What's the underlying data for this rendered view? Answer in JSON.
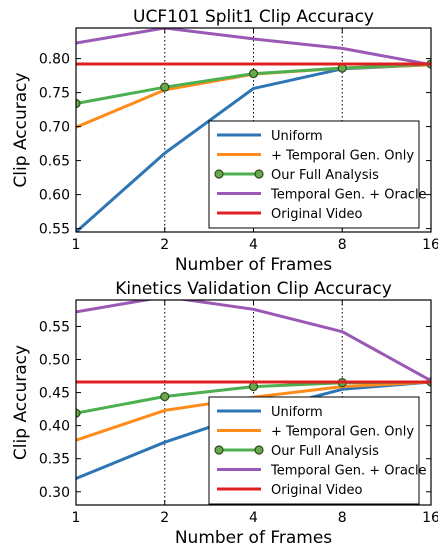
{
  "chart_data": [
    {
      "type": "line",
      "title": "UCF101 Split1 Clip Accuracy",
      "xlabel": "Number of Frames",
      "ylabel": "Clip Accuracy",
      "x": [
        1,
        2,
        4,
        8,
        16
      ],
      "x_scale": "log2",
      "ylim": [
        0.545,
        0.845
      ],
      "yticks": [
        "0.55",
        "0.60",
        "0.65",
        "0.70",
        "0.75",
        "0.80"
      ],
      "grid": "vertical dotted",
      "legend_position": "lower-right",
      "series": [
        {
          "name": "Uniform",
          "color": "#2e75b6",
          "marker": "none",
          "values": [
            0.545,
            0.661,
            0.756,
            0.785,
            0.791
          ]
        },
        {
          "name": "+ Temporal Gen. Only",
          "color": "#ff8c1a",
          "marker": "none",
          "values": [
            0.699,
            0.754,
            0.777,
            0.786,
            0.791
          ]
        },
        {
          "name": "Our Full Analysis",
          "color": "#4caf50",
          "marker": "circle",
          "values": [
            0.734,
            0.758,
            0.778,
            0.786,
            0.792
          ]
        },
        {
          "name": "Temporal Gen. + Oracle",
          "color": "#9b59b6",
          "marker": "none",
          "values": [
            0.823,
            0.845,
            0.829,
            0.815,
            0.791
          ]
        },
        {
          "name": "Original Video",
          "color": "#e02020",
          "marker": "none",
          "values": [
            0.792,
            0.792,
            0.792,
            0.792,
            0.792
          ]
        }
      ]
    },
    {
      "type": "line",
      "title": "Kinetics Validation Clip Accuracy",
      "xlabel": "Number of Frames",
      "ylabel": "Clip Accuracy",
      "x": [
        1,
        2,
        4,
        8,
        16
      ],
      "x_scale": "log2",
      "ylim": [
        0.28,
        0.59
      ],
      "yticks": [
        "0.30",
        "0.35",
        "0.40",
        "0.45",
        "0.50",
        "0.55"
      ],
      "grid": "vertical dotted",
      "legend_position": "lower-right",
      "series": [
        {
          "name": "Uniform",
          "color": "#2e75b6",
          "marker": "none",
          "values": [
            0.32,
            0.375,
            0.42,
            0.455,
            0.466
          ]
        },
        {
          "name": "+ Temporal Gen. Only",
          "color": "#ff8c1a",
          "marker": "none",
          "values": [
            0.378,
            0.423,
            0.443,
            0.459,
            0.466
          ]
        },
        {
          "name": "Our Full Analysis",
          "color": "#4caf50",
          "marker": "circle",
          "values": [
            0.419,
            0.444,
            0.459,
            0.465,
            0.466
          ]
        },
        {
          "name": "Temporal Gen. + Oracle",
          "color": "#9b59b6",
          "marker": "none",
          "values": [
            0.572,
            0.595,
            0.576,
            0.542,
            0.468
          ]
        },
        {
          "name": "Original Video",
          "color": "#e02020",
          "marker": "none",
          "values": [
            0.466,
            0.466,
            0.466,
            0.466,
            0.466
          ]
        }
      ]
    }
  ]
}
